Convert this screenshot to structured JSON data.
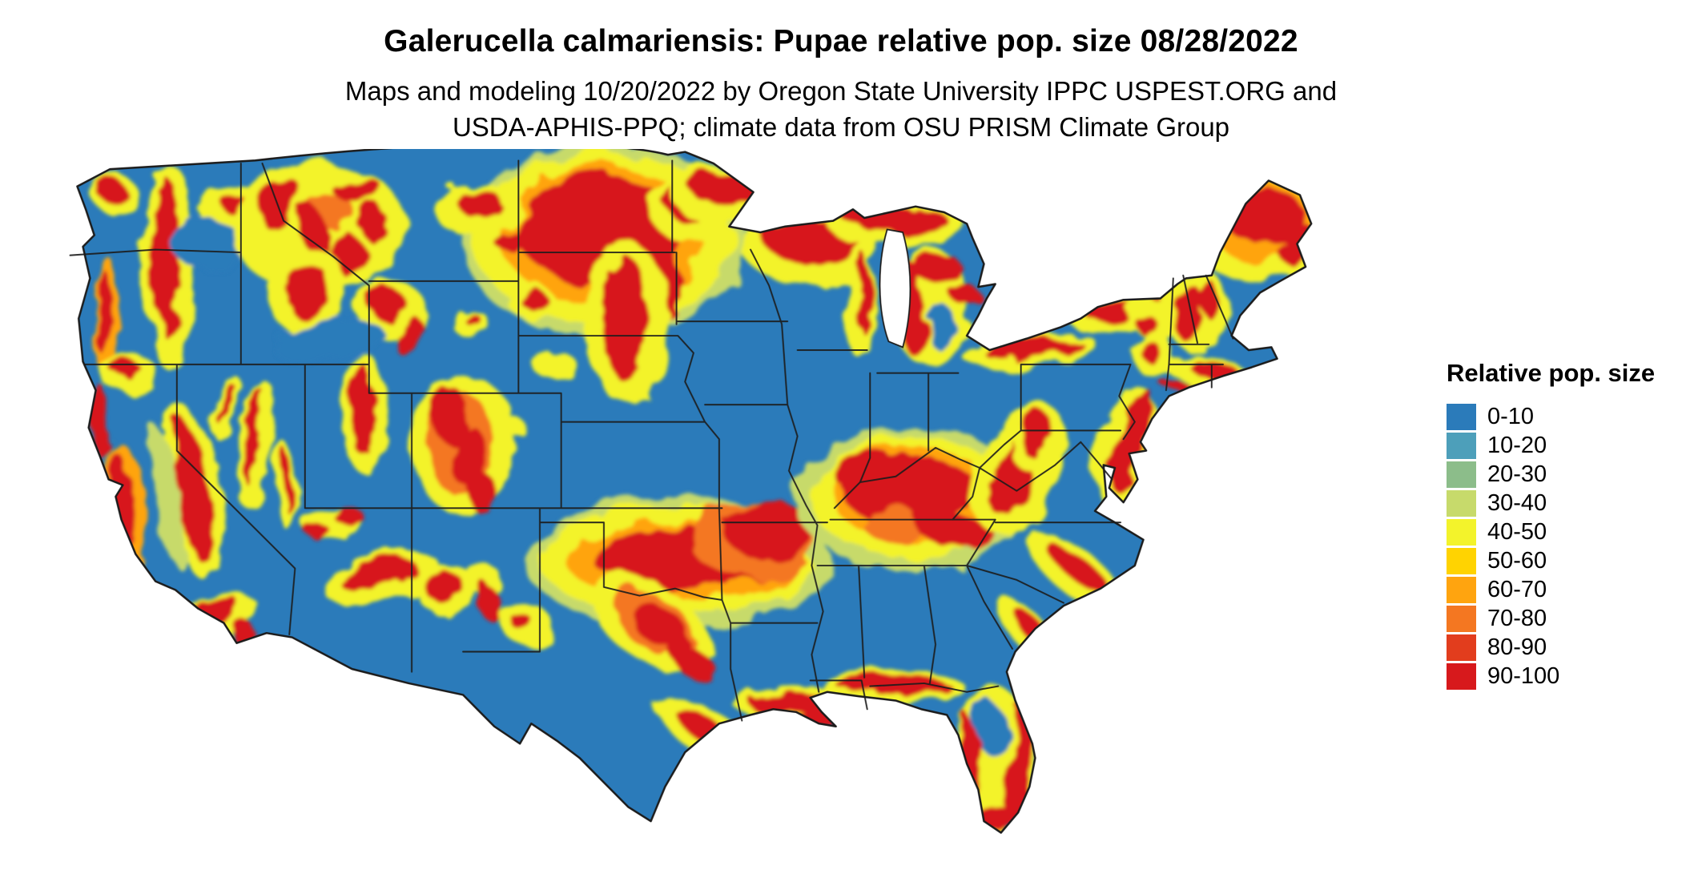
{
  "header": {
    "title": "Galerucella calmariensis: Pupae relative pop. size 08/28/2022",
    "subtitle_line1": "Maps and modeling 10/20/2022 by Oregon State University IPPC USPEST.ORG and",
    "subtitle_line2": "USDA-APHIS-PPQ; climate data from OSU PRISM Climate Group"
  },
  "legend": {
    "title": "Relative pop. size",
    "items": [
      {
        "label": "0-10",
        "color": "#2b7bba"
      },
      {
        "label": "10-20",
        "color": "#4d9fba"
      },
      {
        "label": "20-30",
        "color": "#8cbd8a"
      },
      {
        "label": "30-40",
        "color": "#c7da6b"
      },
      {
        "label": "40-50",
        "color": "#f3f32b"
      },
      {
        "label": "50-60",
        "color": "#ffd301"
      },
      {
        "label": "60-70",
        "color": "#ffa40f"
      },
      {
        "label": "70-80",
        "color": "#f47721"
      },
      {
        "label": "80-90",
        "color": "#e23d1d"
      },
      {
        "label": "90-100",
        "color": "#d7191c"
      }
    ]
  },
  "map": {
    "region": "Continental United States",
    "kind": "raster relative population size map",
    "base_color": "#2b7bba",
    "state_border_color": "#1c1c1c",
    "background_color": "#ffffff"
  }
}
